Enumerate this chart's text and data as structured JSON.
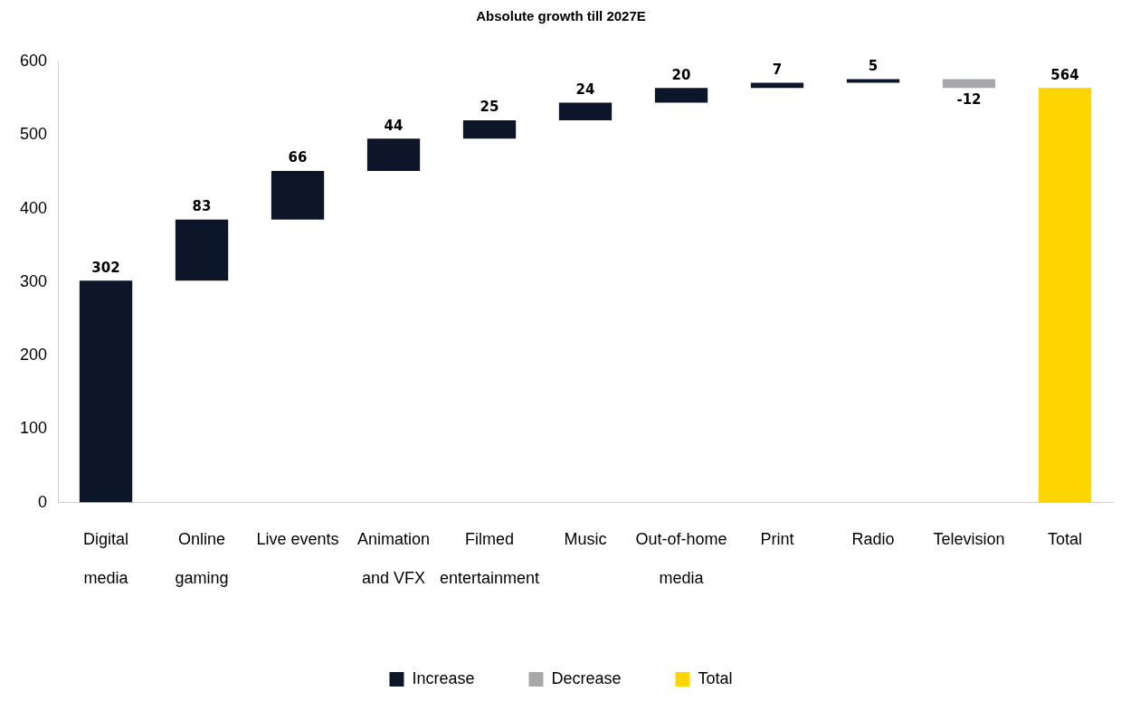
{
  "chart_data": {
    "type": "bar",
    "title": "Absolute growth till 2027E",
    "categories": [
      "Digital media",
      "Online gaming",
      "Live events",
      "Animation and VFX",
      "Filmed entertainment",
      "Music",
      "Out-of-home media",
      "Print",
      "Radio",
      "Television",
      "Total"
    ],
    "series": [
      {
        "name": "Increase",
        "color": "#0d1628",
        "values": [
          302,
          83,
          66,
          44,
          25,
          24,
          20,
          7,
          5,
          null,
          null
        ],
        "base": [
          0,
          302,
          385,
          451,
          495,
          520,
          544,
          564,
          571,
          null,
          null
        ]
      },
      {
        "name": "Decrease",
        "color": "#a6a8ab",
        "values": [
          null,
          null,
          null,
          null,
          null,
          null,
          null,
          null,
          null,
          -12,
          null
        ],
        "base": [
          null,
          null,
          null,
          null,
          null,
          null,
          null,
          null,
          null,
          576,
          null
        ]
      },
      {
        "name": "Total",
        "color": "#ffd500",
        "values": [
          null,
          null,
          null,
          null,
          null,
          null,
          null,
          null,
          null,
          null,
          564
        ],
        "base": [
          null,
          null,
          null,
          null,
          null,
          null,
          null,
          null,
          null,
          null,
          0
        ]
      }
    ],
    "ylim": [
      0,
      600
    ],
    "yticks": [
      0,
      100,
      200,
      300,
      400,
      500,
      600
    ],
    "grid": false,
    "legend": "bottom",
    "data_labels": true
  }
}
